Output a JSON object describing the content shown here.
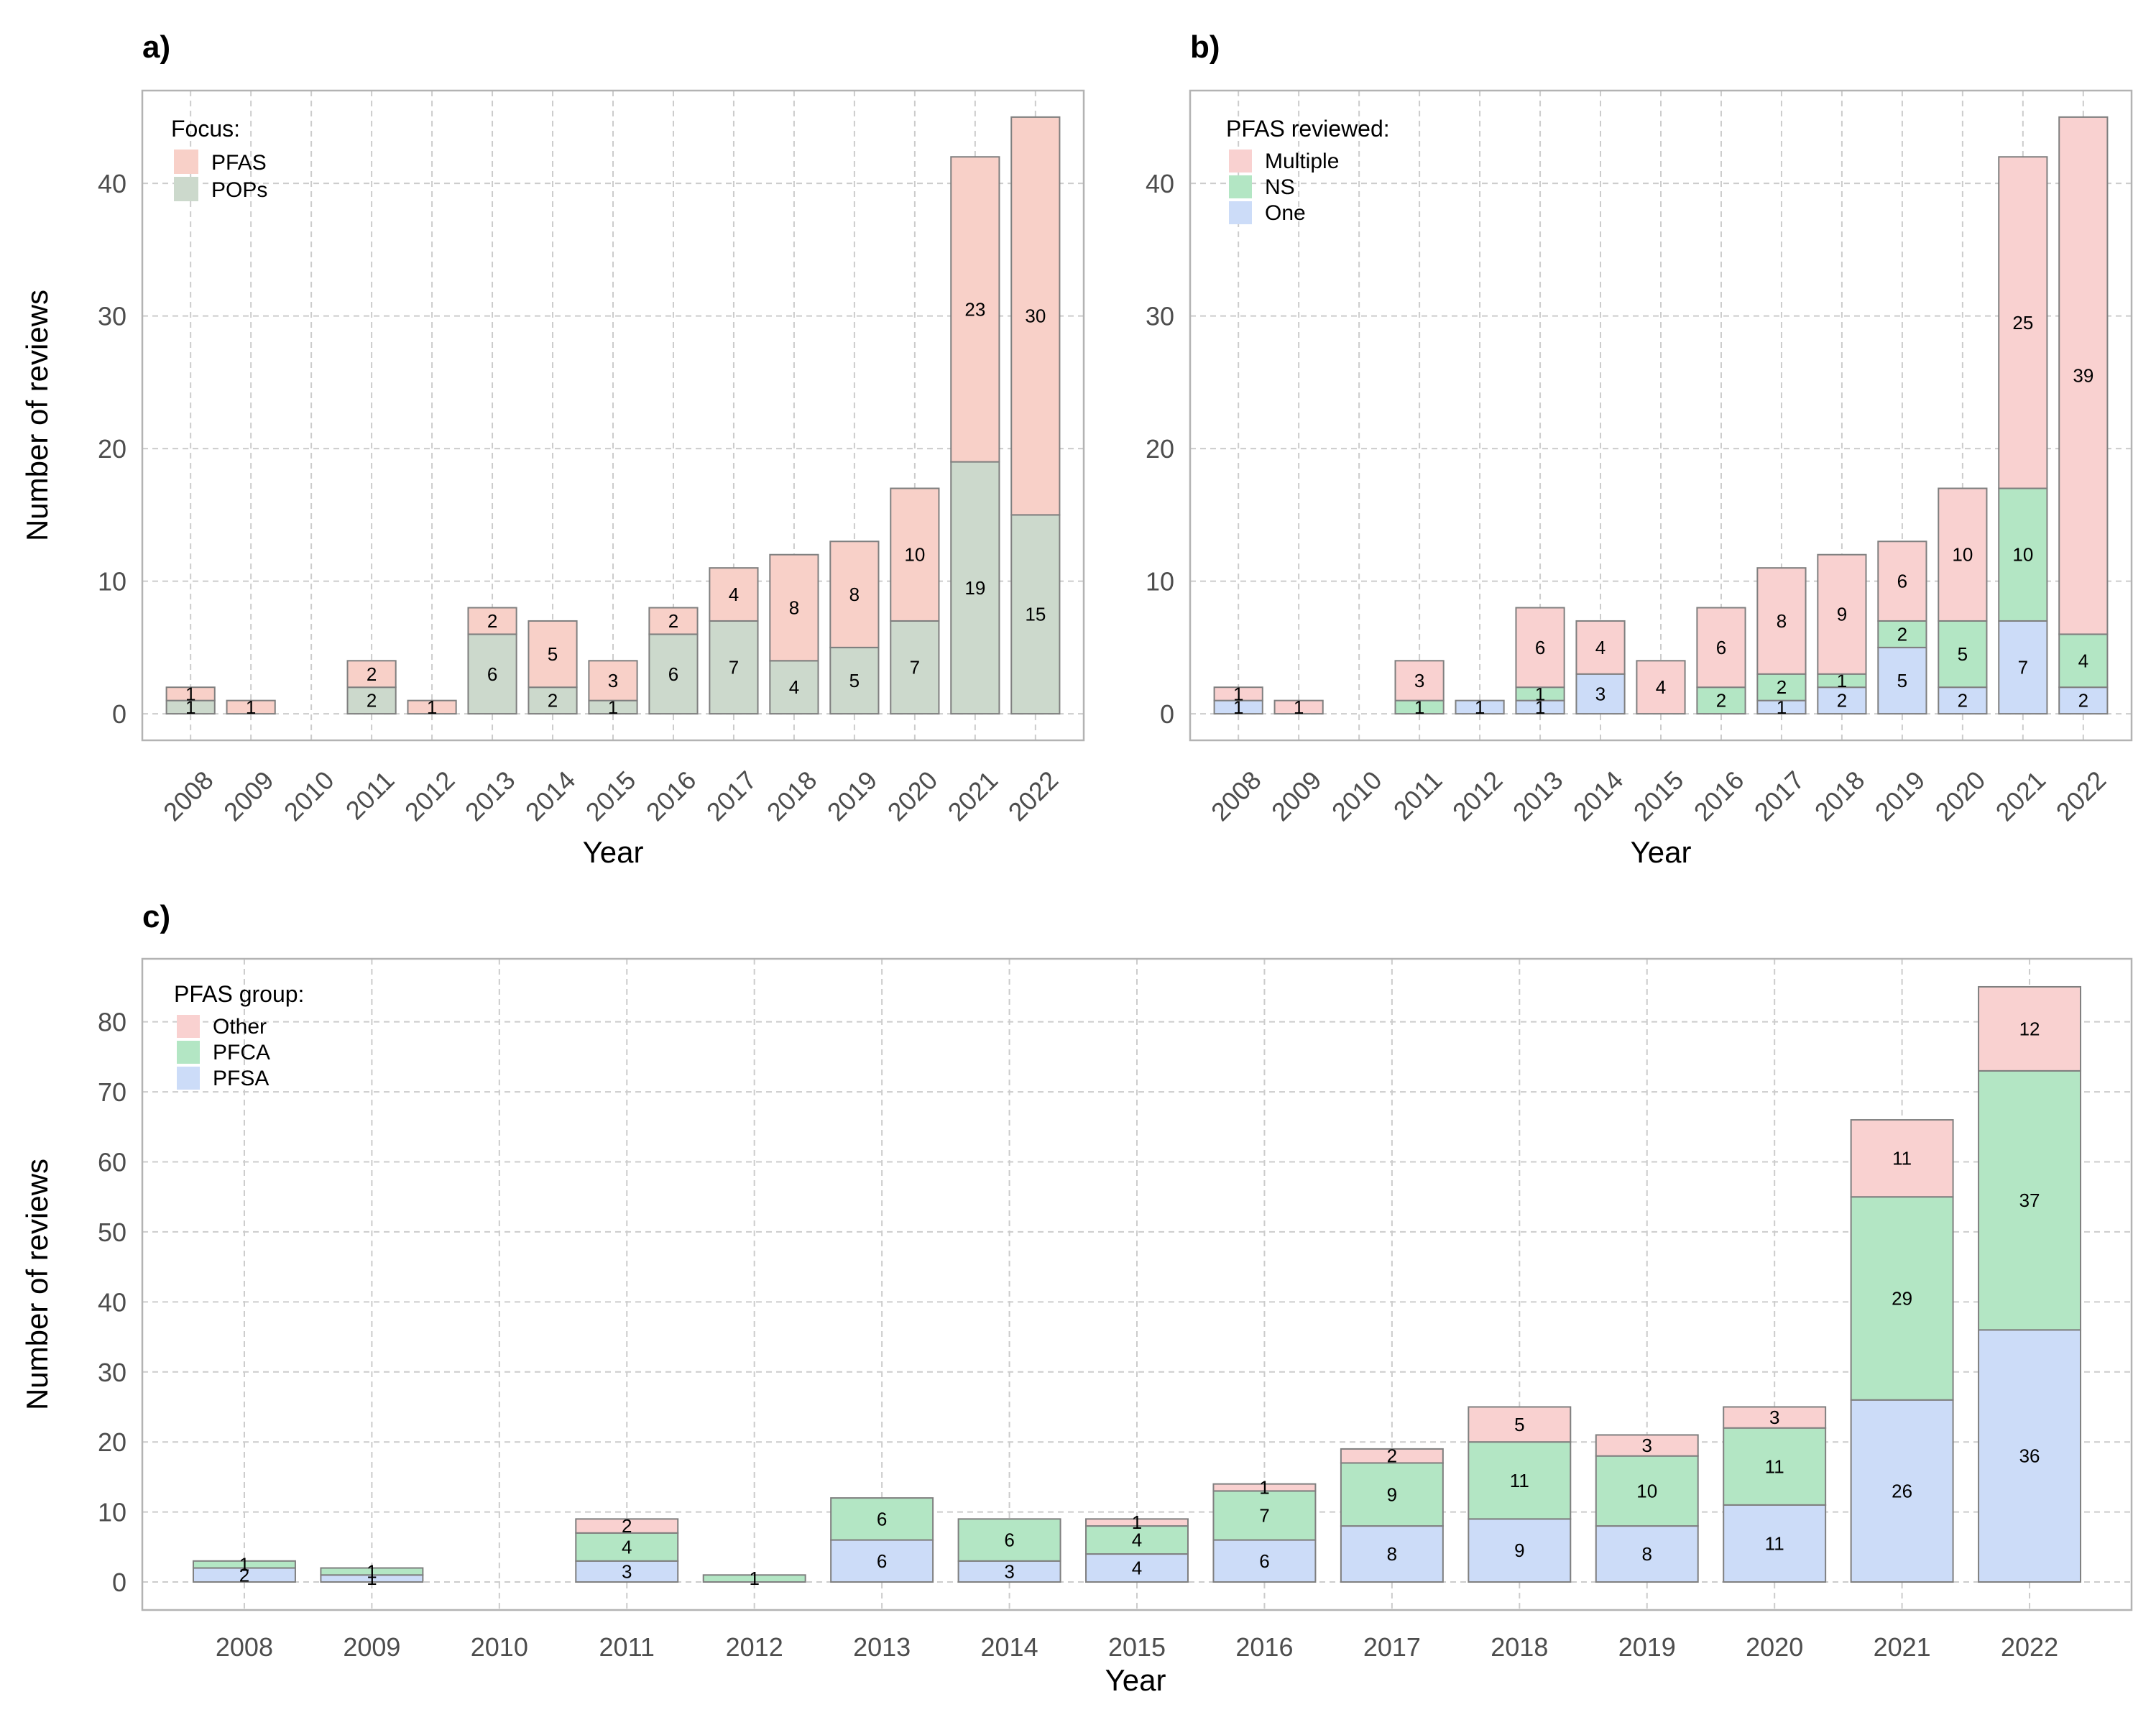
{
  "chart_data": [
    {
      "panel": "a)",
      "type": "bar",
      "stacked": true,
      "xlabel": "Year",
      "ylabel": "Number of reviews",
      "ylim": [
        -2,
        47
      ],
      "yticks": [
        0,
        10,
        20,
        30,
        40
      ],
      "categories": [
        "2008",
        "2009",
        "2010",
        "2011",
        "2012",
        "2013",
        "2014",
        "2015",
        "2016",
        "2017",
        "2018",
        "2019",
        "2020",
        "2021",
        "2022"
      ],
      "legend_title": "Focus:",
      "legend_placement": "top-left",
      "legend_order": [
        1,
        0
      ],
      "series": [
        {
          "name": "POPs",
          "color": "#ccd9cc",
          "values": [
            1,
            0,
            0,
            2,
            0,
            6,
            2,
            1,
            6,
            7,
            4,
            5,
            7,
            19,
            15
          ]
        },
        {
          "name": "PFAS",
          "color": "#f8d0c8",
          "values": [
            1,
            1,
            0,
            2,
            1,
            2,
            5,
            3,
            2,
            4,
            8,
            8,
            10,
            23,
            30
          ]
        }
      ]
    },
    {
      "panel": "b)",
      "type": "bar",
      "stacked": true,
      "xlabel": "Year",
      "ylabel": "",
      "ylim": [
        -2,
        47
      ],
      "yticks": [
        0,
        10,
        20,
        30,
        40
      ],
      "categories": [
        "2008",
        "2009",
        "2010",
        "2011",
        "2012",
        "2013",
        "2014",
        "2015",
        "2016",
        "2017",
        "2018",
        "2019",
        "2020",
        "2021",
        "2022"
      ],
      "legend_title": "PFAS reviewed:",
      "legend_placement": "top-left",
      "legend_order": [
        2,
        1,
        0
      ],
      "series": [
        {
          "name": "One",
          "color": "#ccdcf8",
          "values": [
            1,
            0,
            0,
            0,
            1,
            1,
            3,
            0,
            0,
            1,
            2,
            5,
            2,
            7,
            2
          ]
        },
        {
          "name": "NS",
          "color": "#b3e6c4",
          "values": [
            0,
            0,
            0,
            1,
            0,
            1,
            0,
            0,
            2,
            2,
            1,
            2,
            5,
            10,
            4
          ]
        },
        {
          "name": "Multiple",
          "color": "#f9d1d0",
          "values": [
            1,
            1,
            0,
            3,
            0,
            6,
            4,
            4,
            6,
            8,
            9,
            6,
            10,
            25,
            39
          ]
        }
      ]
    },
    {
      "panel": "c)",
      "type": "bar",
      "stacked": true,
      "xlabel": "Year",
      "ylabel": "Number of reviews",
      "ylim": [
        -4,
        89
      ],
      "yticks": [
        0,
        10,
        20,
        30,
        40,
        50,
        60,
        70,
        80
      ],
      "categories": [
        "2008",
        "2009",
        "2010",
        "2011",
        "2012",
        "2013",
        "2014",
        "2015",
        "2016",
        "2017",
        "2018",
        "2019",
        "2020",
        "2021",
        "2022"
      ],
      "legend_title": "PFAS group:",
      "legend_placement": "top-left",
      "legend_order": [
        2,
        1,
        0
      ],
      "series": [
        {
          "name": "PFSA",
          "color": "#ccdcf8",
          "values": [
            2,
            1,
            0,
            3,
            0,
            6,
            3,
            4,
            6,
            8,
            9,
            8,
            11,
            26,
            36
          ]
        },
        {
          "name": "PFCA",
          "color": "#b3e6c4",
          "values": [
            1,
            1,
            0,
            4,
            1,
            6,
            6,
            4,
            7,
            9,
            11,
            10,
            11,
            29,
            37
          ]
        },
        {
          "name": "Other",
          "color": "#f9d1d0",
          "values": [
            0,
            0,
            0,
            2,
            0,
            0,
            0,
            1,
            1,
            2,
            5,
            3,
            3,
            11,
            12
          ]
        }
      ]
    }
  ]
}
